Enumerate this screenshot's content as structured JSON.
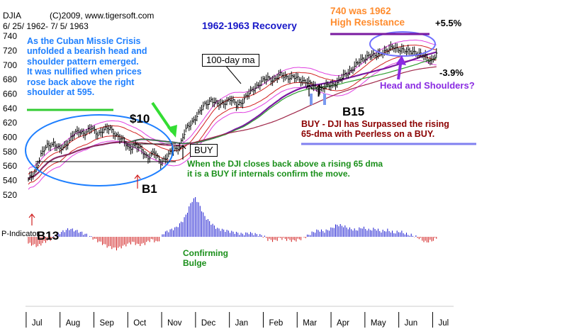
{
  "header": {
    "ticker": "DJIA",
    "copyright": "(C)2009, www.tigersoft.com",
    "date_range": "6/ 25/ 1962- 7/ 5/ 1963",
    "title": "1962-1963  Recovery"
  },
  "annotations": {
    "cuban_crisis": [
      "As the Cuban Missle Crisis",
      "unfolded a bearish head and",
      "shoulder pattern emerged.",
      "It was nullified when prices",
      "rose back above the right",
      "shoulder at 595."
    ],
    "resistance": [
      "740 was 1962",
      "High Resistance"
    ],
    "plus_pct": "+5.5%",
    "minus_pct": "-3.9%",
    "hs_question": "Head and Shoulders?",
    "ma_label": "100-day ma",
    "buy_box": "BUY",
    "signal_10": "$10",
    "signal_b1": "B1",
    "signal_b13": "B13",
    "signal_b15": "B15",
    "buy_note": [
      "BUY - DJI has Surpassed the rising",
      "65-dma with Peerless on a BUY."
    ],
    "rule_note": [
      "When the DJI closes back above a rising 65 dma",
      "it is a BUY if internals confirm the move."
    ],
    "bulge_note": [
      "Confirming",
      "Bulge"
    ],
    "indicator_label": "P-Indicator"
  },
  "colors": {
    "price_bars": "#000000",
    "ma65": "#2e9d2e",
    "ma100": "#a0284a",
    "ma_purple": "#7a1aa0",
    "upper_band": "#e040e0",
    "lower_band": "#e040e0",
    "red_band": "#d22020",
    "indicator_pos": "#1a1ad0",
    "indicator_neg": "#d01818",
    "blue_annot": "#1e7fff",
    "green_annot": "#1a8f1a"
  },
  "chart_data": {
    "type": "bar",
    "title": "1962-1963  Recovery",
    "ylim": [
      513,
      745
    ],
    "yticks": [
      520,
      540,
      560,
      580,
      600,
      620,
      640,
      660,
      680,
      700,
      720,
      740
    ],
    "months": [
      "Jul",
      "Aug",
      "Sep",
      "Oct",
      "Nov",
      "Dec",
      "Jan",
      "Feb",
      "Mar",
      "Apr",
      "May",
      "Jun",
      "Jul"
    ],
    "price_path": [
      [
        0,
        540
      ],
      [
        4,
        552
      ],
      [
        8,
        575
      ],
      [
        12,
        588
      ],
      [
        16,
        592
      ],
      [
        20,
        582
      ],
      [
        24,
        590
      ],
      [
        28,
        602
      ],
      [
        32,
        608
      ],
      [
        36,
        606
      ],
      [
        40,
        612
      ],
      [
        44,
        605
      ],
      [
        48,
        610
      ],
      [
        52,
        612
      ],
      [
        56,
        603
      ],
      [
        60,
        595
      ],
      [
        64,
        585
      ],
      [
        68,
        588
      ],
      [
        72,
        582
      ],
      [
        76,
        572
      ],
      [
        80,
        578
      ],
      [
        84,
        566
      ],
      [
        88,
        572
      ],
      [
        92,
        582
      ],
      [
        96,
        588
      ],
      [
        100,
        610
      ],
      [
        104,
        622
      ],
      [
        108,
        632
      ],
      [
        112,
        645
      ],
      [
        116,
        652
      ],
      [
        120,
        645
      ],
      [
        124,
        648
      ],
      [
        128,
        652
      ],
      [
        132,
        645
      ],
      [
        136,
        650
      ],
      [
        140,
        660
      ],
      [
        144,
        670
      ],
      [
        148,
        676
      ],
      [
        152,
        682
      ],
      [
        156,
        680
      ],
      [
        160,
        686
      ],
      [
        164,
        684
      ],
      [
        168,
        683
      ],
      [
        172,
        680
      ],
      [
        176,
        678
      ],
      [
        180,
        672
      ],
      [
        184,
        666
      ],
      [
        188,
        669
      ],
      [
        192,
        672
      ],
      [
        196,
        676
      ],
      [
        200,
        684
      ],
      [
        204,
        692
      ],
      [
        208,
        700
      ],
      [
        212,
        708
      ],
      [
        216,
        714
      ],
      [
        220,
        712
      ],
      [
        224,
        718
      ],
      [
        228,
        720
      ],
      [
        232,
        725
      ],
      [
        236,
        722
      ],
      [
        240,
        718
      ],
      [
        244,
        720
      ],
      [
        248,
        714
      ],
      [
        252,
        712
      ],
      [
        256,
        706
      ],
      [
        259,
        714
      ]
    ],
    "total_days": 260,
    "indicator": [
      [
        0,
        -10
      ],
      [
        6,
        -14
      ],
      [
        10,
        -8
      ],
      [
        14,
        -4
      ],
      [
        20,
        6
      ],
      [
        26,
        12
      ],
      [
        32,
        8
      ],
      [
        38,
        2
      ],
      [
        44,
        -6
      ],
      [
        50,
        -14
      ],
      [
        56,
        -18
      ],
      [
        62,
        -12
      ],
      [
        66,
        -8
      ],
      [
        70,
        -12
      ],
      [
        74,
        -10
      ],
      [
        78,
        -4
      ],
      [
        82,
        -8
      ],
      [
        86,
        6
      ],
      [
        90,
        10
      ],
      [
        94,
        14
      ],
      [
        98,
        24
      ],
      [
        100,
        32
      ],
      [
        102,
        44
      ],
      [
        104,
        54
      ],
      [
        106,
        58
      ],
      [
        108,
        50
      ],
      [
        110,
        40
      ],
      [
        112,
        30
      ],
      [
        116,
        20
      ],
      [
        120,
        12
      ],
      [
        124,
        10
      ],
      [
        128,
        8
      ],
      [
        132,
        6
      ],
      [
        136,
        4
      ],
      [
        140,
        6
      ],
      [
        144,
        4
      ],
      [
        148,
        2
      ],
      [
        150,
        0
      ],
      [
        152,
        -4
      ],
      [
        156,
        -6
      ],
      [
        160,
        -2
      ],
      [
        164,
        -4
      ],
      [
        168,
        -6
      ],
      [
        172,
        -4
      ],
      [
        176,
        0
      ],
      [
        180,
        6
      ],
      [
        184,
        10
      ],
      [
        188,
        8
      ],
      [
        192,
        12
      ],
      [
        196,
        18
      ],
      [
        200,
        16
      ],
      [
        204,
        12
      ],
      [
        208,
        10
      ],
      [
        212,
        14
      ],
      [
        216,
        10
      ],
      [
        220,
        12
      ],
      [
        224,
        8
      ],
      [
        228,
        10
      ],
      [
        232,
        6
      ],
      [
        236,
        8
      ],
      [
        240,
        4
      ],
      [
        244,
        2
      ],
      [
        248,
        -2
      ],
      [
        252,
        -8
      ],
      [
        256,
        -6
      ],
      [
        259,
        -2
      ]
    ]
  }
}
